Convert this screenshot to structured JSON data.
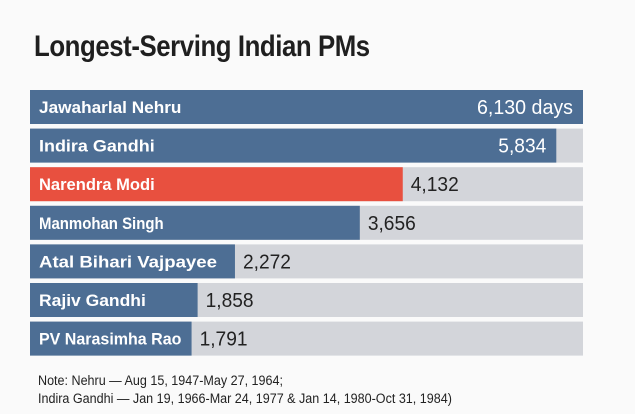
{
  "chart_data": {
    "type": "bar",
    "orientation": "horizontal",
    "title": "Longest-Serving Indian PMs",
    "categories": [
      "Jawaharlal Nehru",
      "Indira Gandhi",
      "Narendra Modi",
      "Manmohan Singh",
      "Atal Bihari Vajpayee",
      "Rajiv Gandhi",
      "PV Narasimha Rao"
    ],
    "values": [
      6130,
      5834,
      4132,
      3656,
      2272,
      1858,
      1791
    ],
    "value_labels": [
      "6,130 days",
      "5,834",
      "4,132",
      "3,656",
      "2,272",
      "1,858",
      "1,791"
    ],
    "unit": "days",
    "xlim": [
      0,
      6130
    ],
    "highlight_category": "Narendra Modi",
    "colors": {
      "bar": "#4d6e94",
      "highlight": "#e8503f",
      "track": "#d3d5da",
      "label": "#ffffff",
      "value_label": "#222222"
    },
    "grid": false,
    "legend": "none"
  },
  "note": {
    "line1": "Note: Nehru — Aug 15, 1947-May 27, 1964;",
    "line2": "Indira Gandhi — Jan 19, 1966-Mar 24, 1977 & Jan 14, 1980-Oct 31, 1984)"
  }
}
